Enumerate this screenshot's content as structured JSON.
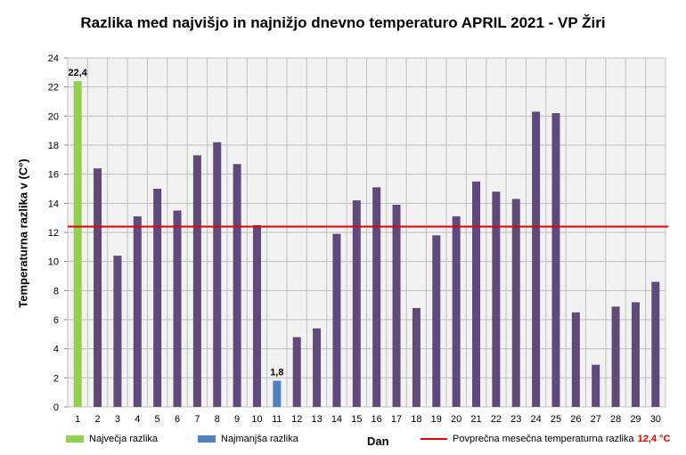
{
  "chart_data": {
    "type": "bar",
    "title": "Razlika med najvišjo  in najnižjo  dnevno temperaturo  APRIL 2021 - VP Žiri",
    "xlabel": "Dan",
    "ylabel": "Temperaturna razlika v (C°)",
    "ylim": [
      0,
      24
    ],
    "yticks": [
      0,
      2,
      4,
      6,
      8,
      10,
      12,
      14,
      16,
      18,
      20,
      22,
      24
    ],
    "grid": true,
    "categories": [
      "1",
      "2",
      "3",
      "4",
      "5",
      "6",
      "7",
      "8",
      "9",
      "10",
      "11",
      "12",
      "13",
      "14",
      "15",
      "16",
      "17",
      "18",
      "19",
      "20",
      "21",
      "22",
      "23",
      "24",
      "25",
      "26",
      "27",
      "28",
      "29",
      "30"
    ],
    "values": [
      22.4,
      16.4,
      10.4,
      13.1,
      15.0,
      13.5,
      17.3,
      18.2,
      16.7,
      12.5,
      1.8,
      4.8,
      5.4,
      11.9,
      14.2,
      15.1,
      13.9,
      6.8,
      11.8,
      13.1,
      15.5,
      14.8,
      14.3,
      20.3,
      20.2,
      6.5,
      2.9,
      6.9,
      7.2,
      8.6
    ],
    "max_index": 0,
    "min_index": 10,
    "max_label": "22,4",
    "min_label": "1,8",
    "average": 12.4,
    "colors": {
      "bar": "#604a7b",
      "max": "#92d050",
      "min": "#4f81bd",
      "average_line": "#e00000",
      "plot_bg": "#f2f2f2",
      "grid": "#c0c0c0"
    },
    "legend": {
      "max_label": "Največja razlika",
      "min_label": "Najmanjša razlika",
      "avg_label": "Povprečna mesečna temperaturna razlika",
      "avg_value": "12,4 °C"
    }
  }
}
